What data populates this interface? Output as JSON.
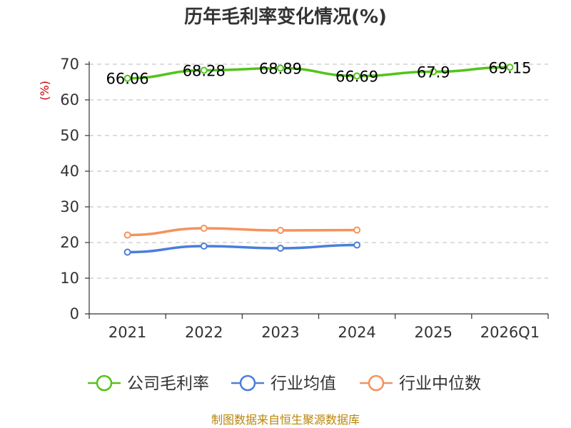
{
  "chart_data": {
    "type": "line",
    "title": "历年毛利率变化情况(%)",
    "ylabel": "(%)",
    "categories": [
      "2021",
      "2022",
      "2023",
      "2024",
      "2025",
      "2026Q1"
    ],
    "ylim": [
      0,
      70
    ],
    "yticks": [
      0,
      10,
      20,
      30,
      40,
      50,
      60,
      70
    ],
    "grid": true,
    "legend_position": "bottom",
    "series": [
      {
        "name": "公司毛利率",
        "color": "#52c41a",
        "values": [
          66.06,
          68.28,
          68.89,
          66.69,
          67.9,
          69.15
        ],
        "labels": [
          "66.06",
          "68.28",
          "68.89",
          "66.69",
          "67.9",
          "69.15"
        ]
      },
      {
        "name": "行业均值",
        "color": "#4a7fd9",
        "values": [
          17.3,
          19.0,
          18.4,
          19.3,
          null,
          null
        ]
      },
      {
        "name": "行业中位数",
        "color": "#f5925a",
        "values": [
          22.1,
          24.0,
          23.4,
          23.5,
          null,
          null
        ]
      }
    ]
  },
  "source": "制图数据来自恒生聚源数据库"
}
